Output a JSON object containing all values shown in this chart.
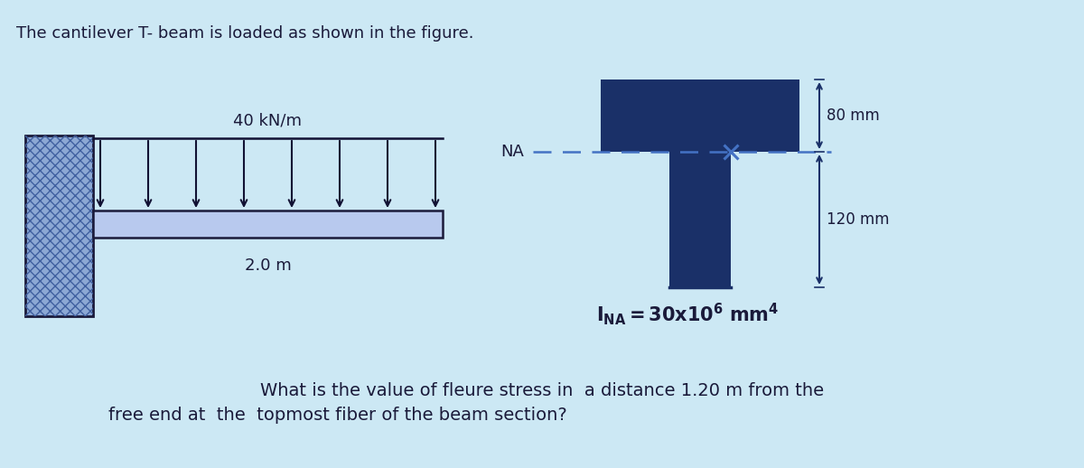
{
  "bg_color": "#cce8f4",
  "title_text": "The cantilever T- beam is loaded as shown in the figure.",
  "title_fontsize": 13,
  "load_label": "40 kN/m",
  "span_label": "2.0 m",
  "dim1_label": "80 mm",
  "dim2_label": "120 mm",
  "na_label": "NA",
  "question_text": "What is the value of fleure stress in  a distance 1.20 m from the\nfree end at  the  topmost fiber of the beam section?",
  "beam_color": "#4472c4",
  "beam_light_color": "#b8c9ee",
  "tbeam_dark": "#1a3068",
  "wall_fill": "#8ca8d4",
  "arrow_color": "#111133",
  "dim_color": "#1a3068",
  "dashed_color": "#4472c4",
  "question_fontsize": 14,
  "title_color": "#1a1a3a",
  "text_color": "#1a1a3a"
}
